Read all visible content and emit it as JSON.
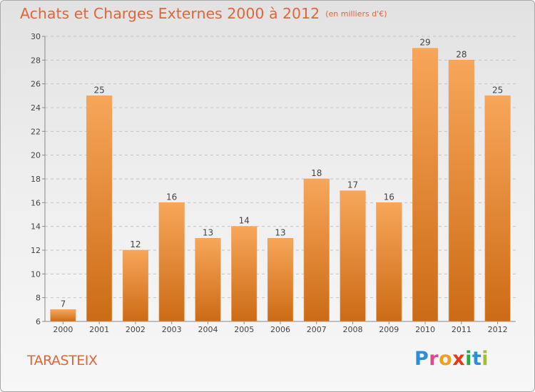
{
  "header": {
    "title": "Achats et Charges Externes 2000 à 2012",
    "subtitle": "(en milliers d'€)"
  },
  "footer": {
    "commune": "TARASTEIX",
    "brand": "Proxiti"
  },
  "colors": {
    "accent": "#e0653a",
    "bar_light": "#f7a65a",
    "bar_dark": "#cc6b15",
    "brand_letters": [
      "#2a8fd6",
      "#e04a8a",
      "#f0a020",
      "#e03c1c",
      "#2aa84a",
      "#2a8fd6",
      "#a0c030"
    ]
  },
  "chart_data": {
    "type": "bar",
    "categories": [
      "2000",
      "2001",
      "2002",
      "2003",
      "2004",
      "2005",
      "2006",
      "2007",
      "2008",
      "2009",
      "2010",
      "2011",
      "2012"
    ],
    "values": [
      7,
      25,
      12,
      16,
      13,
      14,
      13,
      18,
      17,
      16,
      29,
      28,
      25
    ],
    "data_labels": [
      "7",
      "25",
      "12",
      "16",
      "13",
      "14",
      "13",
      "18",
      "17",
      "16",
      "29",
      "28",
      "25"
    ],
    "title": "Achats et Charges Externes 2000 à 2012",
    "ylim": [
      6,
      30
    ],
    "yticks": [
      6,
      8,
      10,
      12,
      14,
      16,
      18,
      20,
      22,
      24,
      26,
      28,
      30
    ],
    "grid": "horizontal dashed",
    "legend": "none"
  }
}
